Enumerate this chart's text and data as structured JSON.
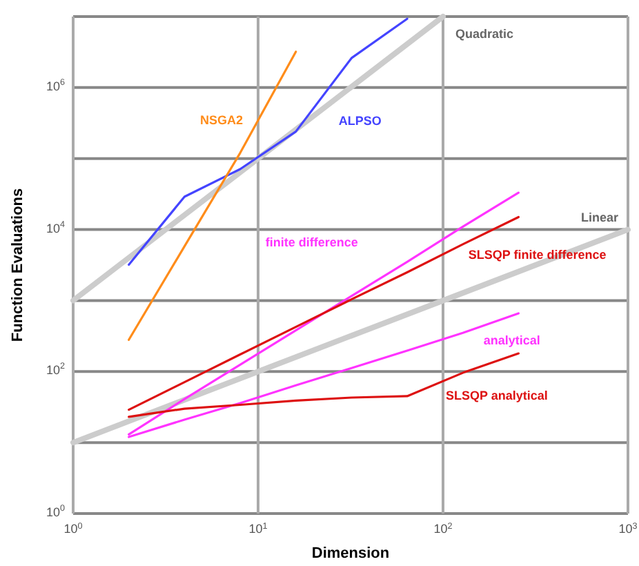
{
  "chart_data": {
    "type": "line",
    "xlabel": "Dimension",
    "ylabel": "Function Evaluations",
    "log": "xy",
    "grid": true,
    "xlim": [
      1,
      1000
    ],
    "ylim": [
      1,
      10000000
    ],
    "xticks": [
      {
        "value": 1,
        "label": "10$^{0}$"
      },
      {
        "value": 10,
        "label": "10$^{1}$"
      },
      {
        "value": 100,
        "label": "10$^{2}$"
      },
      {
        "value": 1000,
        "label": "10$^{3}$"
      }
    ],
    "yticks": [
      {
        "value": 1,
        "label": "10$^{0}$"
      },
      {
        "value": 10,
        "label": null
      },
      {
        "value": 100,
        "label": "10$^{2}$"
      },
      {
        "value": 1000,
        "label": null
      },
      {
        "value": 10000,
        "label": "10$^{4}$"
      },
      {
        "value": 100000,
        "label": null
      },
      {
        "value": 1000000,
        "label": "10$^{6}$"
      },
      {
        "value": 10000000,
        "label": null
      }
    ],
    "series": [
      {
        "name": "Quadratic",
        "color": "#cccccc",
        "x": [
          1,
          100
        ],
        "values": [
          1000,
          10000000
        ]
      },
      {
        "name": "Linear",
        "color": "#cccccc",
        "x": [
          1,
          1000
        ],
        "values": [
          10,
          10000
        ]
      },
      {
        "name": "ALPSO",
        "color": "#4444ff",
        "x": [
          2,
          4,
          8,
          16,
          32,
          64
        ],
        "values": [
          3200,
          29000,
          71000,
          240000,
          2600000,
          9300000
        ]
      },
      {
        "name": "NSGA2",
        "color": "#ff8c1a",
        "x": [
          2,
          4,
          8,
          16
        ],
        "values": [
          280,
          5800,
          120000,
          3200000
        ]
      },
      {
        "name": "finite difference",
        "color": "#ff33ff",
        "x": [
          2,
          4,
          8,
          16,
          32,
          64,
          128,
          256
        ],
        "values": [
          13,
          41,
          125,
          380,
          1160,
          3500,
          11000,
          33000
        ]
      },
      {
        "name": "SLSQP finite difference",
        "color": "#dd1111",
        "x": [
          2,
          4,
          8,
          16,
          32,
          64,
          128,
          256
        ],
        "values": [
          29,
          71,
          174,
          425,
          1040,
          2500,
          6200,
          15000
        ]
      },
      {
        "name": "analytical",
        "color": "#ff33ff",
        "x": [
          2,
          4,
          8,
          16,
          32,
          64,
          128,
          256
        ],
        "values": [
          12,
          21,
          36,
          64,
          112,
          197,
          350,
          660
        ]
      },
      {
        "name": "SLSQP analytical",
        "color": "#dd1111",
        "x": [
          2,
          4,
          8,
          16,
          32,
          64,
          128,
          256
        ],
        "values": [
          23,
          30,
          34,
          39,
          43,
          45,
          96,
          180
        ]
      }
    ]
  }
}
